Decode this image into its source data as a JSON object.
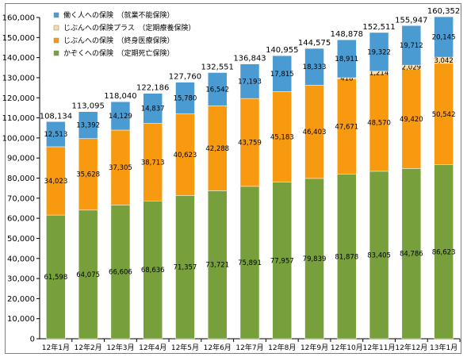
{
  "chart_data": {
    "type": "bar",
    "stacked": true,
    "categories": [
      "12年1月",
      "12年2月",
      "12年3月",
      "12年4月",
      "12年5月",
      "12年6月",
      "12年7月",
      "12年8月",
      "12年9月",
      "12年10月",
      "12年11月",
      "12年12月",
      "13年1月"
    ],
    "series": [
      {
        "name": "かぞくへの保険　（定期死亡保険）",
        "color": "#77a03c",
        "values": [
          61598,
          64075,
          66606,
          68636,
          71357,
          73721,
          75891,
          77957,
          79839,
          81878,
          83405,
          84786,
          86623
        ],
        "labels": [
          "61,598",
          "64,075",
          "66,606",
          "68,636",
          "71,357",
          "73,721",
          "75,891",
          "77,957",
          "79,839",
          "81,878",
          "83,405",
          "84,786",
          "86,623"
        ]
      },
      {
        "name": "じぶんへの保険　（終身医療保険）",
        "color": "#f79a0f",
        "values": [
          34023,
          35628,
          37305,
          38713,
          40623,
          42288,
          43759,
          45183,
          46403,
          47671,
          48570,
          49420,
          50542
        ],
        "labels": [
          "34,023",
          "35,628",
          "37,305",
          "38,713",
          "40,623",
          "42,288",
          "43,759",
          "45,183",
          "46,403",
          "47,671",
          "48,570",
          "49,420",
          "50,542"
        ]
      },
      {
        "name": "じぶんへの保険プラス　（定期療養保険）",
        "color": "#fddb9e",
        "values": [
          0,
          0,
          0,
          0,
          0,
          0,
          0,
          0,
          0,
          418,
          1214,
          2029,
          3042
        ],
        "labels": [
          "",
          "",
          "",
          "",
          "",
          "",
          "",
          "",
          "",
          "418",
          "1,214",
          "2,029",
          "3,042"
        ]
      },
      {
        "name": "働く人への保険　（就業不能保険）",
        "color": "#4b9bd3",
        "values": [
          12513,
          13392,
          14129,
          14837,
          15780,
          16542,
          17193,
          17815,
          18333,
          18911,
          19322,
          19712,
          20145
        ],
        "labels": [
          "12,513",
          "13,392",
          "14,129",
          "14,837",
          "15,780",
          "16,542",
          "17,193",
          "17,815",
          "18,333",
          "18,911",
          "19,322",
          "19,712",
          "20,145"
        ]
      }
    ],
    "totals": [
      108134,
      113095,
      118040,
      122186,
      127760,
      132551,
      136843,
      140955,
      144575,
      148878,
      152511,
      155947,
      160352
    ],
    "total_labels": [
      "108,134",
      "113,095",
      "118,040",
      "122,186",
      "127,760",
      "132,551",
      "136,843",
      "140,955",
      "144,575",
      "148,878",
      "152,511",
      "155,947",
      "160,352"
    ],
    "ylim": [
      0,
      160000
    ],
    "ytick_labels": [
      "0",
      "10,000",
      "20,000",
      "30,000",
      "40,000",
      "50,000",
      "60,000",
      "70,000",
      "80,000",
      "90,000",
      "100,000",
      "110,000",
      "120,000",
      "130,000",
      "140,000",
      "150,000",
      "160,000"
    ],
    "legend": [
      "働く人への保険　（就業不能保険）",
      "じぶんへの保険プラス　（定期療養保険）",
      "じぶんへの保険　（終身医療保険）",
      "かぞくへの保険　（定期死亡保険）"
    ],
    "legend_colors": [
      "#4b9bd3",
      "#fddb9e",
      "#f79a0f",
      "#77a03c"
    ],
    "legend_position": "top-left",
    "grid": false
  }
}
